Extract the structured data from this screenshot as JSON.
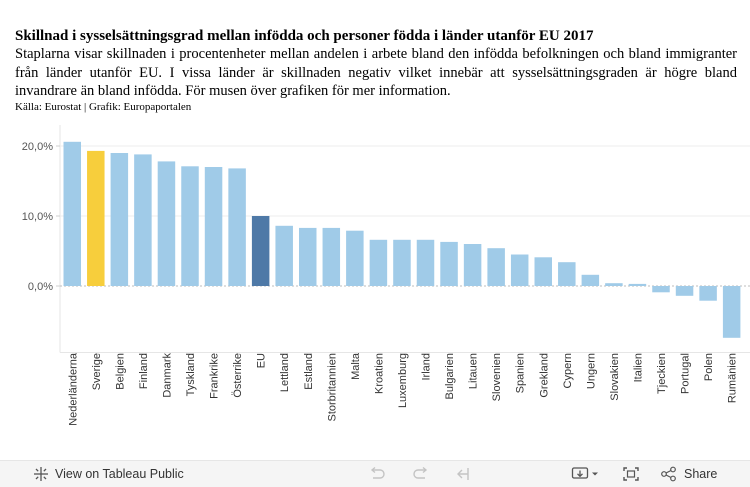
{
  "header": {
    "title": "Skillnad i sysselsättningsgrad mellan infödda och personer födda i länder utanför EU 2017",
    "subtitle": "Staplarna visar skillnaden i procentenheter mellan andelen i arbete bland den infödda befolkningen och bland immigranter från länder utanför EU. I vissa länder är skillnaden negativ vilket innebär att sysselsättningsgraden är högre bland invandrare än bland infödda. För musen över grafiken för mer information.",
    "source": "Källa: Eurostat | Grafik: Europaportalen"
  },
  "chart_data": {
    "type": "bar",
    "categories": [
      "Nederländerna",
      "Sverige",
      "Belgien",
      "Finland",
      "Danmark",
      "Tyskland",
      "Frankrike",
      "Österrike",
      "EU",
      "Lettland",
      "Estland",
      "Storbritannien",
      "Malta",
      "Kroatien",
      "Luxemburg",
      "Irland",
      "Bulgarien",
      "Litauen",
      "Slovenien",
      "Spanien",
      "Grekland",
      "Cypern",
      "Ungern",
      "Slovakien",
      "Italien",
      "Tjeckien",
      "Portugal",
      "Polen",
      "Rumänien"
    ],
    "values": [
      20.6,
      19.3,
      19.0,
      18.8,
      17.8,
      17.1,
      17.0,
      16.8,
      10.0,
      8.6,
      8.3,
      8.3,
      7.9,
      6.6,
      6.6,
      6.6,
      6.3,
      6.0,
      5.4,
      4.5,
      4.1,
      3.4,
      1.6,
      0.4,
      0.3,
      -0.9,
      -1.4,
      -2.1,
      -7.4
    ],
    "highlight": {
      "Sverige": "#f7ce3c",
      "EU": "#4e79a7"
    },
    "default_color": "#a0cbe8",
    "ylim": [
      -9.5,
      23
    ],
    "yticks": [
      0,
      10,
      20
    ],
    "ytick_labels": [
      "0,0%",
      "10,0%",
      "20,0%"
    ],
    "xlabel": "",
    "ylabel": ""
  },
  "toolbar": {
    "view_public_label": "View on Tableau Public",
    "share_label": "Share"
  },
  "icons": {
    "tableau": "tableau-icon",
    "undo": "undo-icon",
    "redo": "redo-icon",
    "revert": "revert-icon",
    "download": "download-icon",
    "fullscreen": "fullscreen-icon",
    "share": "share-icon"
  }
}
